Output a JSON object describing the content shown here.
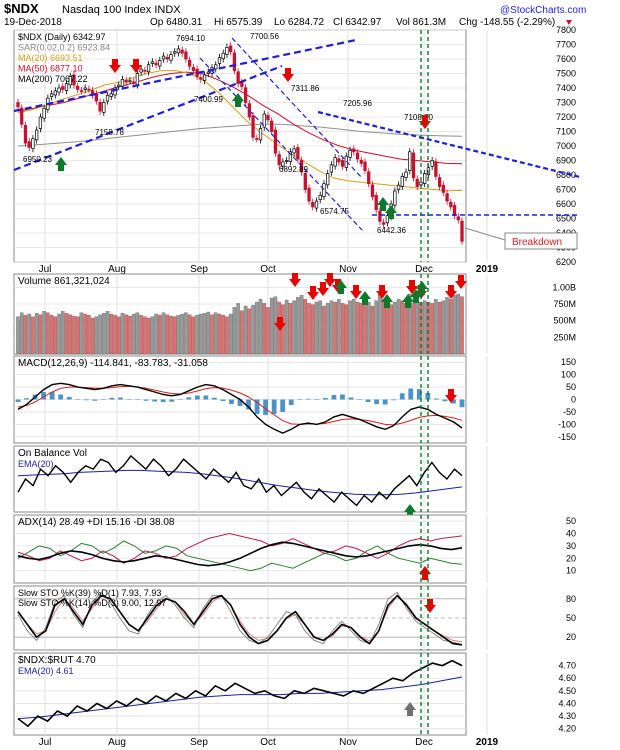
{
  "header": {
    "symbol": "$NDX",
    "name": "Nasdaq 100 Index  INDX",
    "date": "19-Dec-2018",
    "open": "Op 6480.31",
    "high": "Hi 6575.39",
    "low": "Lo 6284.72",
    "close": "Cl 6342.97",
    "volume": "Vol 861.3M",
    "change": "Chg -148.55 (-2.29%)",
    "copyright": "@StockCharts.com"
  },
  "colors": {
    "up": "#ffffff",
    "down": "#c8102e",
    "neutral": "#000000",
    "trendline": "#1f1fd6",
    "ma20": "#d4a017",
    "ma50": "#c8102e",
    "ma200": "#909090",
    "sar": "#888888",
    "vol_up": "#999999",
    "vol_down": "#e07070",
    "macd_line": "#000000",
    "macd_signal": "#d62020",
    "macd_hist": "#4b93c7",
    "green_arrow": "#0a7a2a",
    "red_arrow": "#e60000",
    "gray_arrow": "#707070",
    "grid": "#e0e0e0"
  },
  "chart_data": [
    {
      "type": "candlestick",
      "title": "$NDX Nasdaq 100 Index INDX",
      "legend": [
        "$NDX (Daily) 6342.97",
        "SAR(0.02,0.2) 6923.84",
        "MA(20) 6693.51",
        "MA(50) 6877.10",
        "MA(200) 7067.22"
      ],
      "x_ticks": [
        "Jul",
        "Aug",
        "Sep",
        "Oct",
        "Nov",
        "Dec",
        "2019"
      ],
      "ylim": [
        6200,
        7800
      ],
      "y_ticks": [
        7800,
        7700,
        7600,
        7500,
        7400,
        7300,
        7200,
        7100,
        7000,
        6900,
        6800,
        6700,
        6600,
        6500,
        6400,
        6300,
        6200
      ],
      "annotations": [
        "7694.10",
        "7700.56",
        "7400.99",
        "7311.86",
        "7205.96",
        "7108.80",
        "7158.78",
        "6950.23",
        "6892.89",
        "6574.75",
        "6442.36",
        "Breakdown"
      ],
      "series": [
        {
          "name": "Close",
          "values": [
            7270,
            7150,
            7020,
            6990,
            7050,
            7110,
            7200,
            7260,
            7330,
            7360,
            7380,
            7400,
            7390,
            7430,
            7480,
            7420,
            7390,
            7380,
            7400,
            7390,
            7350,
            7310,
            7240,
            7300,
            7350,
            7360,
            7400,
            7420,
            7460,
            7440,
            7450,
            7430,
            7500,
            7530,
            7520,
            7560,
            7580,
            7560,
            7590,
            7620,
            7600,
            7630,
            7650,
            7670,
            7640,
            7600,
            7550,
            7520,
            7480,
            7460,
            7490,
            7510,
            7540,
            7560,
            7610,
            7640,
            7680,
            7650,
            7520,
            7430,
            7410,
            7300,
            7200,
            7060,
            7050,
            7120,
            7220,
            7180,
            7100,
            6950,
            6870,
            6890,
            6900,
            6960,
            6980,
            6910,
            6820,
            6700,
            6620,
            6580,
            6620,
            6660,
            6740,
            6810,
            6870,
            6920,
            6890,
            6860,
            6930,
            6970,
            6960,
            6910,
            6880,
            6830,
            6740,
            6650,
            6560,
            6480,
            6460,
            6520,
            6600,
            6690,
            6730,
            6790,
            6820,
            6960,
            6780,
            6720,
            6750,
            6810,
            6850,
            6900,
            6790,
            6720,
            6680,
            6620,
            6580,
            6520,
            6490,
            6342.97
          ]
        },
        {
          "name": "MA(20)",
          "values": [
            7230,
            7250,
            7280,
            7320,
            7350,
            7380,
            7420,
            7440,
            7470,
            7500,
            7520,
            7520,
            7500,
            7450,
            7370,
            7270,
            7170,
            7090,
            7020,
            6950,
            6890,
            6830,
            6780,
            6760,
            6750,
            6740,
            6730,
            6720,
            6710,
            6700,
            6690,
            6693.51
          ]
        },
        {
          "name": "MA(50)",
          "values": [
            7240,
            7260,
            7280,
            7300,
            7330,
            7360,
            7390,
            7420,
            7450,
            7480,
            7500,
            7510,
            7500,
            7460,
            7410,
            7350,
            7280,
            7220,
            7150,
            7090,
            7040,
            7000,
            6970,
            6950,
            6930,
            6910,
            6900,
            6890,
            6880,
            6877.1
          ]
        },
        {
          "name": "MA(200)",
          "values": [
            7000,
            7010,
            7020,
            7030,
            7045,
            7060,
            7075,
            7090,
            7105,
            7120,
            7130,
            7140,
            7150,
            7150,
            7140,
            7130,
            7115,
            7100,
            7090,
            7080,
            7075,
            7070,
            7067.22
          ]
        }
      ]
    },
    {
      "type": "bar",
      "title": "Volume 861,321,024",
      "ylim": [
        0,
        1200
      ],
      "y_ticks": [
        "1.00B",
        "750M",
        "500M",
        "250M"
      ],
      "values": [
        560,
        620,
        580,
        600,
        560,
        610,
        590,
        640,
        620,
        580,
        560,
        600,
        640,
        610,
        590,
        570,
        560,
        620,
        600,
        580,
        540,
        560,
        590,
        610,
        640,
        600,
        580,
        560,
        610,
        590,
        570,
        600,
        620,
        580,
        560,
        540,
        560,
        600,
        580,
        620,
        590,
        570,
        560,
        580,
        600,
        620,
        590,
        560,
        580,
        600,
        610,
        630,
        590,
        620,
        600,
        580,
        560,
        600,
        700,
        760,
        650,
        720,
        680,
        730,
        780,
        820,
        760,
        700,
        840,
        860,
        780,
        740,
        810,
        760,
        800,
        850,
        880,
        820,
        760,
        740,
        780,
        800,
        720,
        760,
        800,
        780,
        820,
        760,
        740,
        800,
        820,
        780,
        760,
        740,
        780,
        720,
        800,
        900,
        820,
        760,
        740,
        780,
        820,
        800,
        760,
        900,
        760,
        820,
        780,
        800,
        780,
        760,
        820,
        780,
        800,
        850,
        820,
        880,
        900,
        861
      ]
    },
    {
      "type": "line",
      "title": "MACD(12,26,9) -114.841, -83.783, -31.058",
      "ylim": [
        -175,
        175
      ],
      "y_ticks": [
        150,
        100,
        50,
        0,
        -50,
        -100,
        -150
      ],
      "series": [
        {
          "name": "MACD",
          "values": [
            -40,
            -20,
            10,
            40,
            60,
            65,
            60,
            50,
            45,
            40,
            45,
            55,
            60,
            55,
            50,
            40,
            30,
            20,
            15,
            20,
            35,
            50,
            60,
            55,
            40,
            20,
            0,
            -30,
            -70,
            -100,
            -120,
            -135,
            -120,
            -100,
            -95,
            -100,
            -90,
            -70,
            -60,
            -70,
            -80,
            -95,
            -110,
            -120,
            -105,
            -70,
            -40,
            -30,
            -40,
            -60,
            -75,
            -90,
            -114.841
          ]
        },
        {
          "name": "Signal",
          "values": [
            -30,
            -25,
            -10,
            10,
            30,
            45,
            50,
            50,
            48,
            45,
            45,
            48,
            52,
            53,
            50,
            45,
            38,
            30,
            24,
            22,
            26,
            34,
            44,
            48,
            46,
            38,
            26,
            10,
            -12,
            -38,
            -62,
            -85,
            -98,
            -100,
            -98,
            -99,
            -96,
            -88,
            -80,
            -78,
            -80,
            -85,
            -92,
            -100,
            -102,
            -95,
            -84,
            -72,
            -66,
            -64,
            -68,
            -74,
            -83.783
          ]
        },
        {
          "name": "Histogram",
          "values": [
            -10,
            5,
            20,
            30,
            30,
            20,
            10,
            0,
            -3,
            -5,
            0,
            7,
            8,
            2,
            0,
            -5,
            -8,
            -10,
            -9,
            -2,
            9,
            16,
            16,
            7,
            -6,
            -18,
            -26,
            -40,
            -58,
            -62,
            -58,
            -50,
            -22,
            0,
            3,
            -1,
            6,
            18,
            20,
            8,
            0,
            -10,
            -18,
            -20,
            -3,
            25,
            44,
            42,
            26,
            4,
            -7,
            -16,
            -31.058
          ]
        }
      ]
    },
    {
      "type": "line",
      "title": "On Balance Vol",
      "series": [
        {
          "name": "OBV",
          "values": [
            30,
            50,
            40,
            65,
            55,
            70,
            60,
            45,
            60,
            70,
            65,
            80,
            75,
            60,
            70,
            85,
            75,
            65,
            80,
            70,
            55,
            65,
            80,
            70,
            60,
            50,
            65,
            55,
            45,
            60,
            40,
            35,
            50,
            30,
            40,
            25,
            35,
            45,
            30,
            20,
            35,
            25,
            15,
            30,
            20,
            10,
            25,
            15,
            30,
            20,
            35,
            45,
            55,
            40,
            60,
            75,
            60,
            50,
            65,
            55
          ]
        },
        {
          "name": "EMA(20)",
          "values": [
            55,
            56,
            57,
            58,
            60,
            61,
            62,
            63,
            63,
            62,
            61,
            60,
            58,
            55,
            52,
            48,
            44,
            40,
            37,
            34,
            31,
            29,
            27,
            26,
            26,
            27,
            29,
            32,
            35,
            38
          ]
        }
      ]
    },
    {
      "type": "line",
      "title": "ADX(14) 28.49 +DI 15.16 -DI 38.08",
      "ylim": [
        0,
        55
      ],
      "y_ticks": [
        50,
        40,
        30,
        20,
        10
      ],
      "series": [
        {
          "name": "ADX(14)",
          "values": [
            22,
            20,
            19,
            21,
            24,
            26,
            25,
            23,
            20,
            18,
            17,
            18,
            20,
            22,
            21,
            19,
            17,
            15,
            14,
            15,
            17,
            20,
            24,
            28,
            31,
            33,
            32,
            30,
            28,
            26,
            24,
            22,
            21,
            22,
            24,
            26,
            28,
            30,
            31,
            30,
            28,
            27,
            28.49
          ]
        },
        {
          "name": "+DI",
          "values": [
            20,
            25,
            30,
            28,
            22,
            26,
            32,
            30,
            24,
            28,
            34,
            30,
            24,
            26,
            30,
            28,
            22,
            20,
            18,
            16,
            14,
            12,
            10,
            12,
            16,
            14,
            12,
            16,
            20,
            24,
            22,
            18,
            20,
            26,
            30,
            24,
            20,
            18,
            16,
            20,
            18,
            16,
            15.16
          ]
        },
        {
          "name": "-DI",
          "values": [
            25,
            22,
            18,
            20,
            26,
            22,
            18,
            20,
            26,
            22,
            16,
            20,
            26,
            24,
            20,
            22,
            28,
            32,
            36,
            38,
            40,
            38,
            36,
            34,
            30,
            32,
            36,
            32,
            28,
            24,
            26,
            30,
            28,
            24,
            20,
            24,
            30,
            34,
            36,
            34,
            36,
            37,
            38.08
          ]
        }
      ]
    },
    {
      "type": "line",
      "title": "Slow STO %K(39) %D(1) 7.93, 7.93 / Slow STO %K(14) %D(3) 9.00, 12.97",
      "ylim": [
        0,
        100
      ],
      "y_ticks": [
        80,
        50,
        20
      ],
      "series": [
        {
          "name": "%K(39)",
          "values": [
            60,
            40,
            20,
            30,
            70,
            80,
            60,
            40,
            70,
            85,
            80,
            60,
            40,
            30,
            50,
            70,
            80,
            75,
            60,
            40,
            60,
            80,
            85,
            70,
            40,
            20,
            10,
            15,
            30,
            50,
            60,
            40,
            20,
            15,
            25,
            40,
            35,
            20,
            10,
            30,
            70,
            85,
            70,
            50,
            40,
            30,
            20,
            10,
            7.93
          ]
        },
        {
          "name": "%K(14)",
          "values": [
            55,
            30,
            15,
            35,
            75,
            85,
            55,
            35,
            75,
            90,
            75,
            50,
            30,
            25,
            55,
            75,
            85,
            70,
            50,
            35,
            65,
            85,
            85,
            60,
            30,
            15,
            10,
            20,
            40,
            60,
            55,
            30,
            15,
            10,
            30,
            45,
            30,
            15,
            10,
            40,
            80,
            90,
            65,
            45,
            35,
            25,
            15,
            12,
            9.0
          ]
        },
        {
          "name": "%D(3)",
          "values": [
            60,
            40,
            25,
            30,
            60,
            80,
            65,
            45,
            65,
            85,
            80,
            60,
            40,
            30,
            45,
            65,
            80,
            75,
            55,
            40,
            55,
            75,
            85,
            70,
            45,
            25,
            15,
            18,
            30,
            50,
            55,
            40,
            22,
            15,
            22,
            38,
            35,
            22,
            14,
            30,
            65,
            85,
            72,
            52,
            40,
            30,
            22,
            15,
            12.97
          ]
        }
      ]
    },
    {
      "type": "line",
      "title": "$NDX:$RUT 4.70",
      "ylim": [
        4.15,
        4.8
      ],
      "y_ticks": [
        4.7,
        4.6,
        4.5,
        4.4,
        4.3,
        4.2
      ],
      "series": [
        {
          "name": "$NDX:$RUT",
          "values": [
            4.28,
            4.22,
            4.3,
            4.26,
            4.34,
            4.3,
            4.38,
            4.34,
            4.4,
            4.36,
            4.42,
            4.38,
            4.44,
            4.4,
            4.46,
            4.42,
            4.48,
            4.44,
            4.5,
            4.46,
            4.54,
            4.5,
            4.56,
            4.52,
            4.48,
            4.5,
            4.46,
            4.44,
            4.5,
            4.48,
            4.52,
            4.5,
            4.48,
            4.46,
            4.5,
            4.48,
            4.52,
            4.56,
            4.6,
            4.58,
            4.64,
            4.68,
            4.72,
            4.7,
            4.74,
            4.7
          ]
        },
        {
          "name": "EMA(20)",
          "values": [
            4.28,
            4.29,
            4.31,
            4.33,
            4.35,
            4.37,
            4.39,
            4.41,
            4.43,
            4.45,
            4.46,
            4.47,
            4.47,
            4.47,
            4.48,
            4.48,
            4.49,
            4.5,
            4.51,
            4.53,
            4.55,
            4.58,
            4.61
          ]
        }
      ]
    }
  ]
}
